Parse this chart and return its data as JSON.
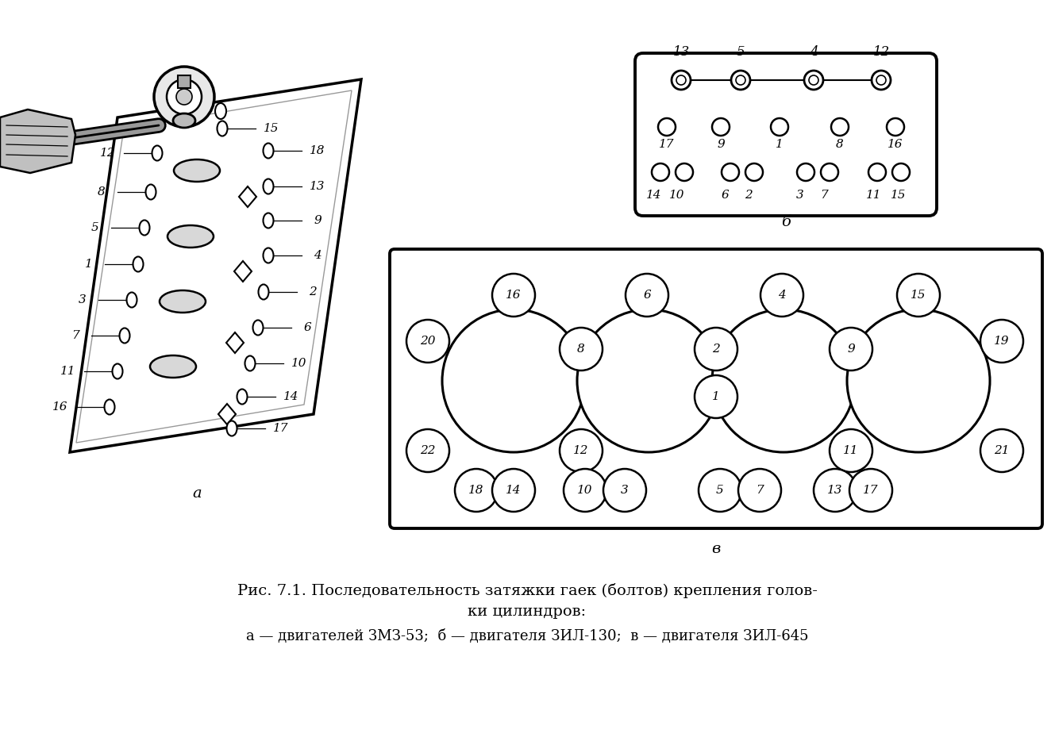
{
  "bg": "#ffffff",
  "caption1": "Рис. 7.1. Последовательность затяжки гаек (болтов) крепления голов-",
  "caption2": "ки цилиндров:",
  "caption3": "а — двигателей ЗМЗ-53;  б — двигателя ЗИЛ-130;  в — двигателя ЗИЛ-645"
}
